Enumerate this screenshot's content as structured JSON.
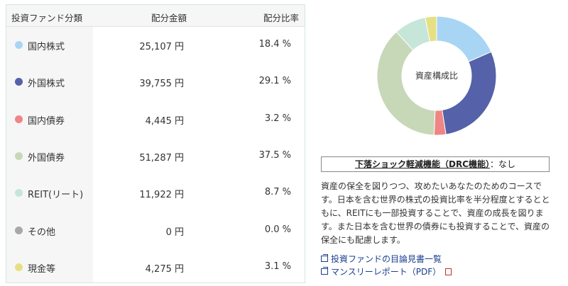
{
  "table": {
    "header_category": "投資ファンド分類",
    "header_amount": "配分金額",
    "header_ratio": "配分比率",
    "rows": [
      {
        "category": "国内株式",
        "amount": "25,107 円",
        "ratio": "18.4 %",
        "color": "#a9d5f5"
      },
      {
        "category": "外国株式",
        "amount": "39,755 円",
        "ratio": "29.1 %",
        "color": "#5561a8"
      },
      {
        "category": "国内債券",
        "amount": "4,445 円",
        "ratio": "3.2 %",
        "color": "#f08585"
      },
      {
        "category": "外国債券",
        "amount": "51,287 円",
        "ratio": "37.5 %",
        "color": "#c6d8b8"
      },
      {
        "category": "REIT(リート)",
        "amount": "11,922 円",
        "ratio": "8.7 %",
        "color": "#c5e6d8"
      },
      {
        "category": "その他",
        "amount": "0 円",
        "ratio": "0.0 %",
        "color": "#a8a8a8"
      },
      {
        "category": "現金等",
        "amount": "4,275 円",
        "ratio": "3.1 %",
        "color": "#e6e085"
      }
    ]
  },
  "chart_data": {
    "type": "pie",
    "center_label": "資産構成比",
    "categories": [
      "国内株式",
      "外国株式",
      "国内債券",
      "外国債券",
      "REIT(リート)",
      "その他",
      "現金等"
    ],
    "values": [
      18.4,
      29.1,
      3.2,
      37.5,
      8.7,
      0.0,
      3.1
    ],
    "colors": [
      "#a9d5f5",
      "#5561a8",
      "#f08585",
      "#c6d8b8",
      "#c5e6d8",
      "#a8a8a8",
      "#e6e085"
    ]
  },
  "drc": {
    "label": "下落ショック軽減機能（DRC機能）",
    "value": "：なし"
  },
  "description": "資産の保全を図りつつ、攻めたいあなたのためのコースです。日本を含む世界の株式の投資比率を半分程度とするとともに、REITにも一部投資することで、資産の成長を図ります。また日本を含む世界の債券にも投資することで、資産の保全にも配慮します。",
  "links": {
    "prospectus": "投資ファンドの目論見書一覧",
    "monthly_report": "マンスリーレポート（PDF）"
  }
}
